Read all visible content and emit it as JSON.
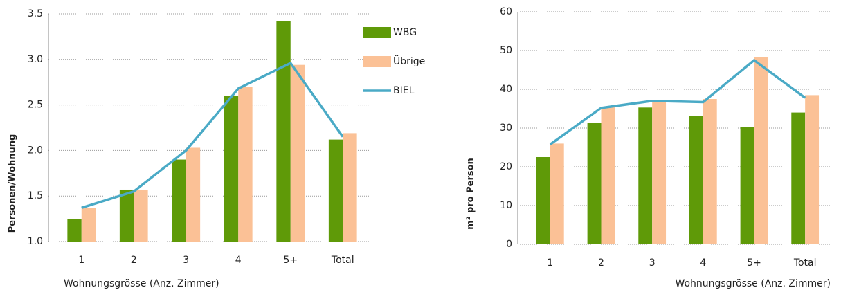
{
  "chart_data": [
    {
      "type": "bar",
      "categories": [
        "1",
        "2",
        "3",
        "4",
        "5+",
        "Total"
      ],
      "series": [
        {
          "name": "WBG",
          "color": "#5f9a08",
          "values": [
            1.25,
            1.57,
            1.9,
            2.6,
            3.42,
            2.12
          ]
        },
        {
          "name": "Übrige",
          "color": "#fbc196",
          "values": [
            1.37,
            1.57,
            2.03,
            2.7,
            2.94,
            2.19
          ]
        },
        {
          "name": "BIEL",
          "color": "#4aaac6",
          "kind": "line",
          "values": [
            1.37,
            1.55,
            2.0,
            2.68,
            2.96,
            2.15
          ]
        }
      ],
      "ylim": [
        1,
        3.5
      ],
      "yticks": [
        {
          "value": 1,
          "label": "1.0"
        },
        1.5,
        {
          "value": 2,
          "label": "2.0"
        },
        2.5,
        {
          "value": 3,
          "label": "3.0"
        },
        3.5
      ],
      "y_label": "Personen/Wohnung",
      "x_label": "Wohnungsgrösse (Anz. Zimmer)",
      "grid": true,
      "legend": "right"
    },
    {
      "type": "bar",
      "categories": [
        "1",
        "2",
        "3",
        "4",
        "5+",
        "Total"
      ],
      "series": [
        {
          "color": "#5f9a08",
          "values": [
            22.5,
            31.3,
            35.3,
            33.1,
            30.2,
            34.0
          ]
        },
        {
          "color": "#fbc196",
          "values": [
            26.0,
            35.5,
            37.0,
            37.5,
            48.3,
            38.5
          ]
        },
        {
          "color": "#4aaac6",
          "kind": "line",
          "values": [
            25.8,
            35.2,
            37.0,
            36.7,
            47.5,
            37.8
          ]
        }
      ],
      "ylim": [
        0,
        60
      ],
      "yticks": [
        0,
        10,
        20,
        30,
        40,
        50,
        60
      ],
      "y_label": "m² pro Person",
      "x_label": "Wohnungsgrösse (Anz. Zimmer)",
      "grid": true
    }
  ]
}
